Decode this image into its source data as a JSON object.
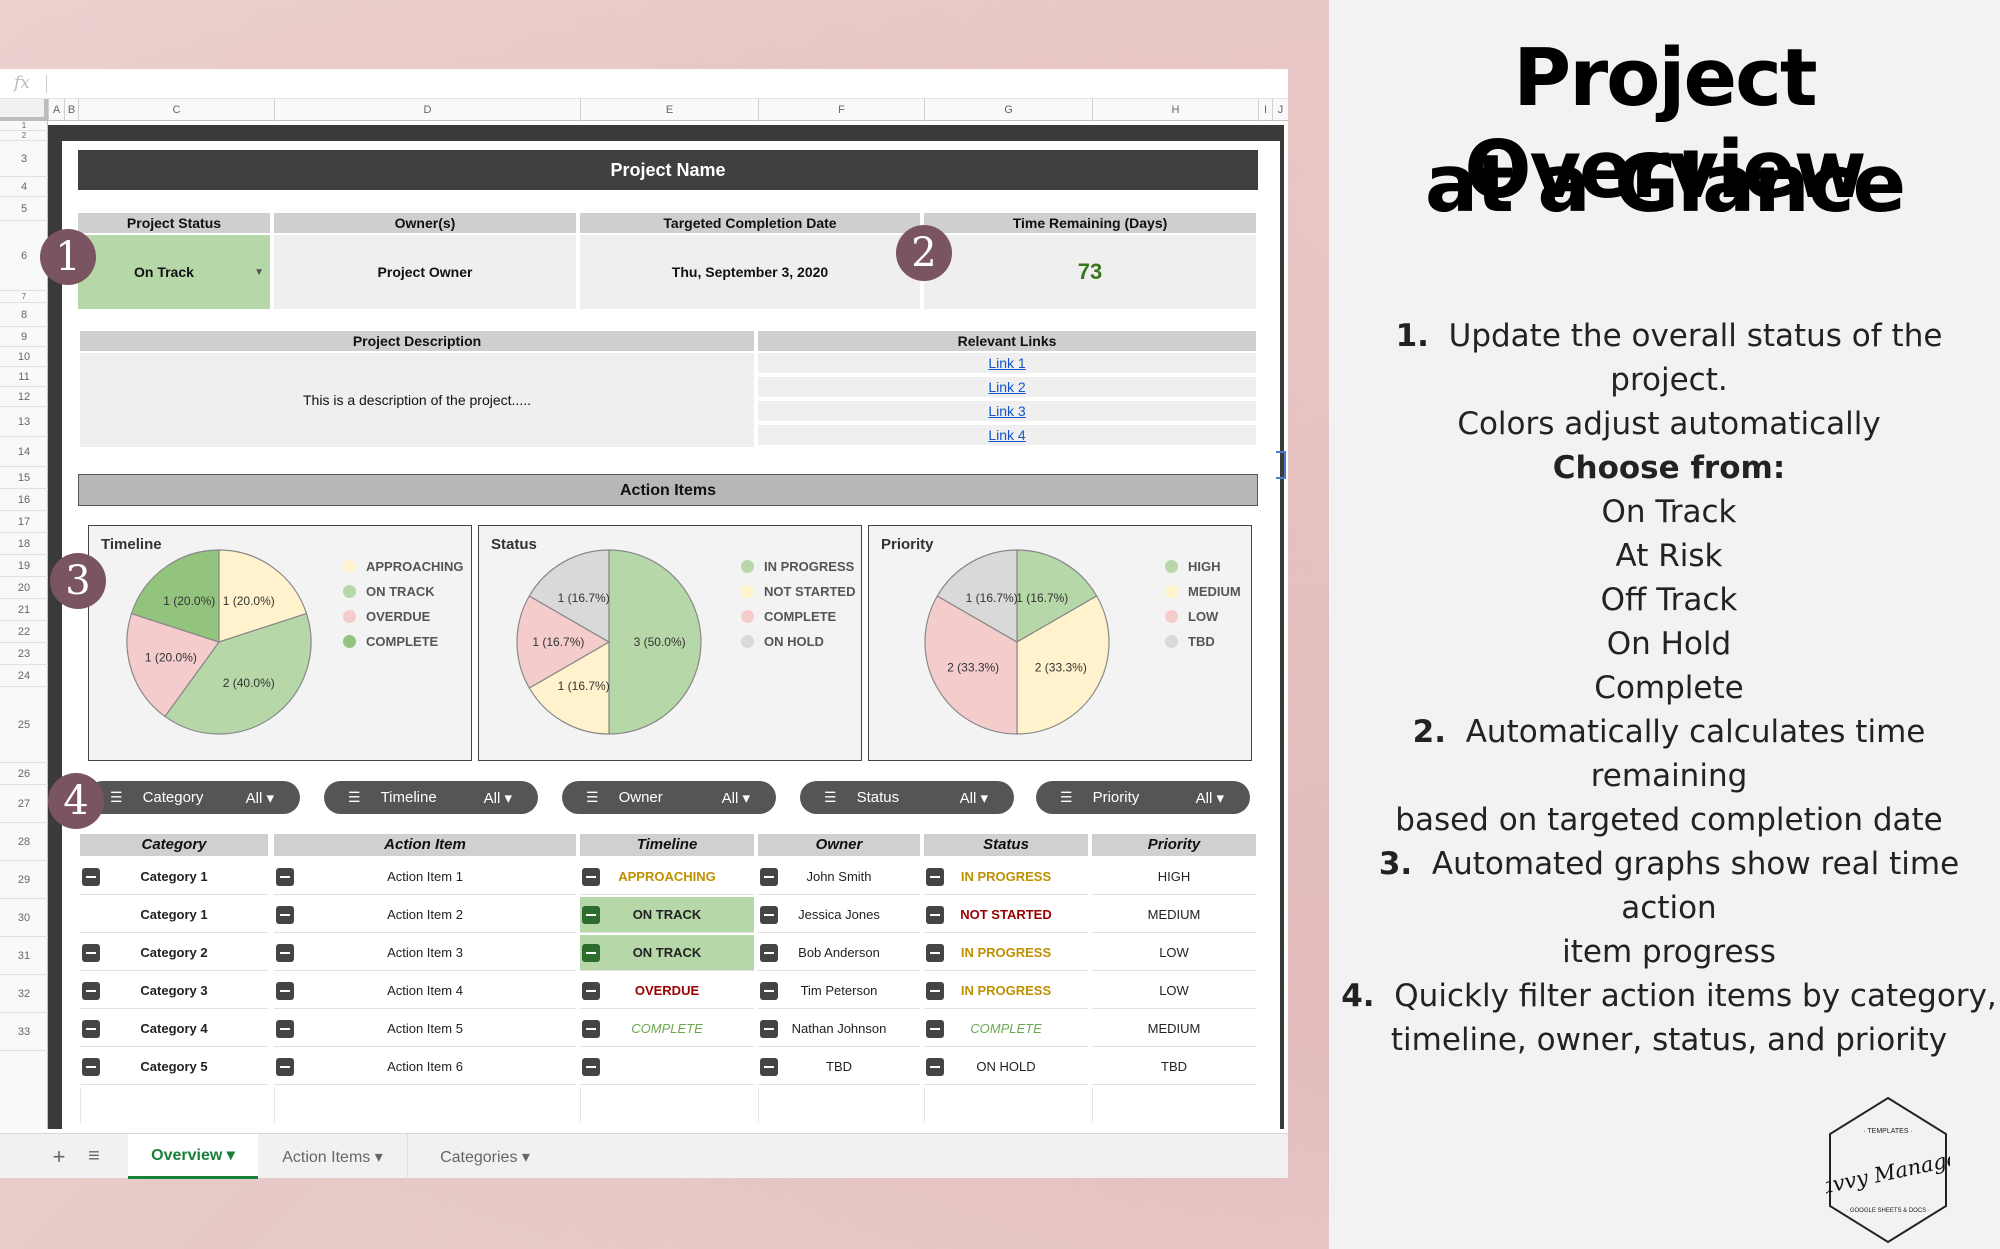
{
  "formula_bar": {
    "fx": "fx"
  },
  "columns": [
    "A",
    "B",
    "C",
    "D",
    "E",
    "F",
    "G",
    "H",
    "I",
    "J"
  ],
  "rows": [
    "1",
    "2",
    "3",
    "4",
    "5",
    "6",
    "7",
    "8",
    "9",
    "10",
    "11",
    "12",
    "13",
    "14",
    "15",
    "16",
    "17",
    "18",
    "19",
    "20",
    "21",
    "22",
    "23",
    "24",
    "25",
    "26",
    "27",
    "28",
    "29",
    "30",
    "31",
    "32",
    "33"
  ],
  "project": {
    "name": "Project Name",
    "headers": {
      "status": "Project Status",
      "owners": "Owner(s)",
      "target": "Targeted Completion Date",
      "remaining": "Time Remaining (Days)"
    },
    "status": "On Track",
    "owner": "Project Owner",
    "target_date": "Thu, September 3, 2020",
    "remaining_days": "73",
    "description_header": "Project Description",
    "description": "This is a description of the project.....",
    "links_header": "Relevant Links",
    "links": [
      "Link 1",
      "Link 2",
      "Link 3",
      "Link 4"
    ]
  },
  "action_items_title": "Action Items",
  "colors": {
    "approaching": "#fff2cc",
    "on_track": "#b6d7a8",
    "overdue": "#f4cccc",
    "complete": "#93c47d",
    "in_progress": "#b6d7a8",
    "not_started": "#fff2cc",
    "on_hold": "#d9d9d9",
    "high": "#b6d7a8",
    "medium": "#fff2cc",
    "low": "#f4cccc",
    "tbd": "#d9d9d9",
    "status_green": "#b6d7a8",
    "dark_band": "#404040",
    "badge": "#7a5460"
  },
  "chart_data": [
    {
      "type": "pie",
      "title": "Timeline",
      "categories": [
        "APPROACHING",
        "ON TRACK",
        "OVERDUE",
        "COMPLETE"
      ],
      "values": [
        1,
        2,
        1,
        1
      ],
      "labels": [
        "1 (20.0%)",
        "2 (40.0%)",
        "1 (20.0%)",
        "1 (20.0%)"
      ],
      "legend": "right"
    },
    {
      "type": "pie",
      "title": "Status",
      "categories": [
        "IN PROGRESS",
        "NOT STARTED",
        "COMPLETE",
        "ON HOLD"
      ],
      "values": [
        3,
        1,
        1,
        1
      ],
      "labels": [
        "3 (50.0%)",
        "1 (16.7%)",
        "1 (16.7%)",
        "1 (16.7%)"
      ],
      "legend": "right"
    },
    {
      "type": "pie",
      "title": "Priority",
      "categories": [
        "HIGH",
        "MEDIUM",
        "LOW",
        "TBD"
      ],
      "values": [
        1,
        2,
        2,
        1
      ],
      "labels": [
        "1 (16.7%)",
        "2 (33.3%)",
        "2 (33.3%)",
        "1 (16.7%)"
      ],
      "legend": "right"
    }
  ],
  "filters": [
    {
      "label": "Category",
      "value": "All ▾"
    },
    {
      "label": "Timeline",
      "value": "All ▾"
    },
    {
      "label": "Owner",
      "value": "All ▾"
    },
    {
      "label": "Status",
      "value": "All ▾"
    },
    {
      "label": "Priority",
      "value": "All ▾"
    }
  ],
  "table": {
    "headers": [
      "Category",
      "Action Item",
      "Timeline",
      "Owner",
      "Status",
      "Priority"
    ],
    "rows": [
      {
        "category": "Category 1",
        "item": "Action Item 1",
        "timeline": "APPROACHING",
        "owner": "John Smith",
        "status": "IN PROGRESS",
        "priority": "HIGH"
      },
      {
        "category": "Category 1",
        "item": "Action Item 2",
        "timeline": "ON TRACK",
        "owner": "Jessica Jones",
        "status": "NOT STARTED",
        "priority": "MEDIUM"
      },
      {
        "category": "Category 2",
        "item": "Action Item 3",
        "timeline": "ON TRACK",
        "owner": "Bob Anderson",
        "status": "IN PROGRESS",
        "priority": "LOW"
      },
      {
        "category": "Category 3",
        "item": "Action Item 4",
        "timeline": "OVERDUE",
        "owner": "Tim Peterson",
        "status": "IN PROGRESS",
        "priority": "LOW"
      },
      {
        "category": "Category 4",
        "item": "Action Item 5",
        "timeline": "COMPLETE",
        "owner": "Nathan Johnson",
        "status": "COMPLETE",
        "priority": "MEDIUM"
      },
      {
        "category": "Category 5",
        "item": "Action Item 6",
        "timeline": "",
        "owner": "TBD",
        "status": "ON HOLD",
        "priority": "TBD"
      }
    ]
  },
  "badges": [
    "1",
    "2",
    "3",
    "4"
  ],
  "tabs": {
    "add": "+",
    "menu": "≡",
    "items": [
      "Overview ▾",
      "Action Items ▾",
      "Categories ▾"
    ]
  },
  "panel": {
    "title_line1": "Project Overview",
    "title_line2": "at a Glance",
    "step1": {
      "num": "1.",
      "line1": "Update the overall status of the project.",
      "line2": "Colors adjust automatically",
      "choose": "Choose from:",
      "options": [
        "On Track",
        "At Risk",
        "Off Track",
        "On Hold",
        "Complete"
      ]
    },
    "step2": {
      "num": "2.",
      "line1": "Automatically calculates time remaining",
      "line2": "based on targeted completion date"
    },
    "step3": {
      "num": "3.",
      "line1": "Automated graphs show real time action",
      "line2": "item progress"
    },
    "step4": {
      "num": "4.",
      "line1": "Quickly filter action items by category,",
      "line2": "timeline, owner, status, and priority"
    }
  },
  "logo": {
    "top": "· TEMPLATES ·",
    "name": "Savvy Manager",
    "bottom": "· GOOGLE SHEETS & DOCS ·"
  }
}
